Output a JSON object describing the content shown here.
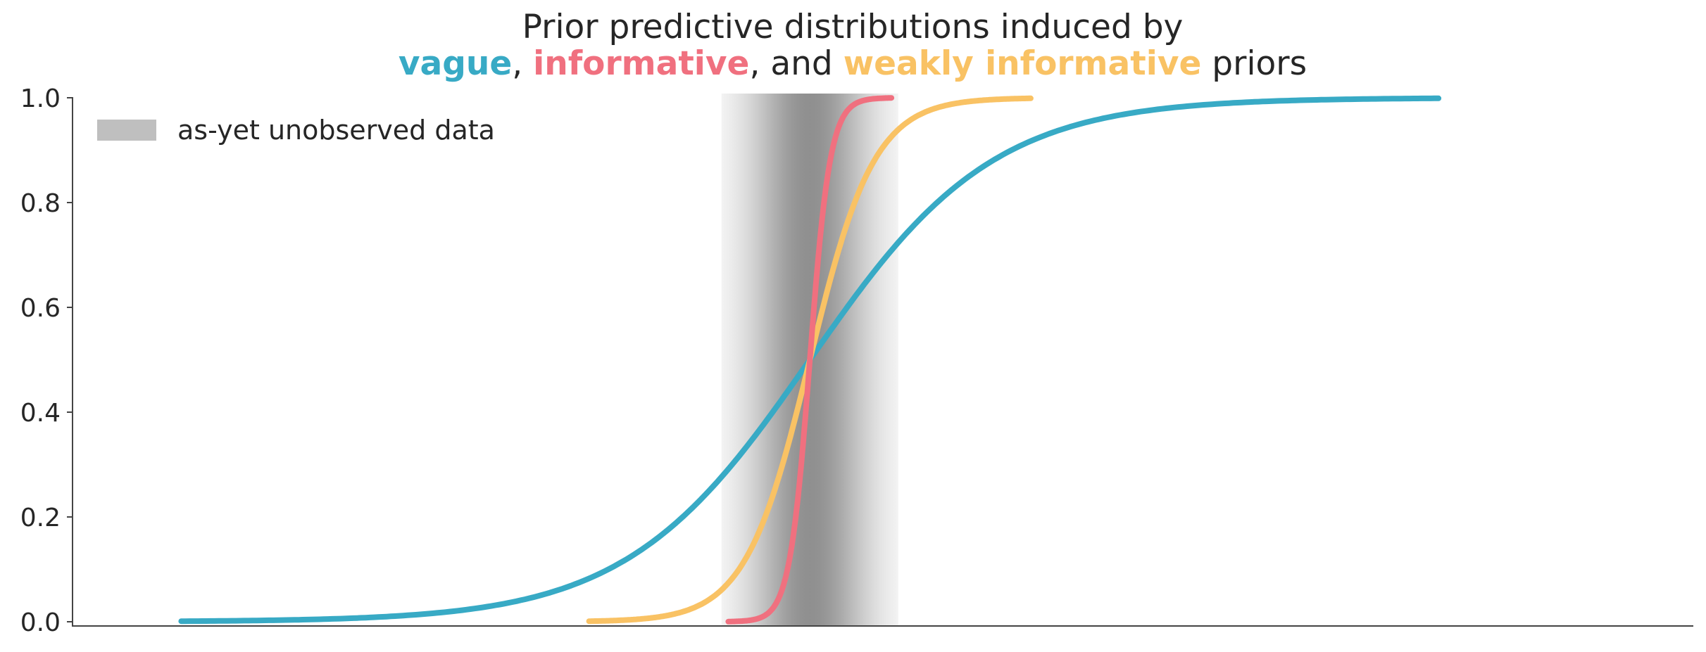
{
  "chart_data": {
    "type": "line",
    "title_line1": "Prior predictive distributions induced by",
    "title_line2": [
      {
        "text": "vague",
        "color": "#38aac5",
        "bold": true
      },
      {
        "text": ", ",
        "color": "#262626",
        "bold": false
      },
      {
        "text": "informative",
        "color": "#f0707f",
        "bold": true
      },
      {
        "text": ", and ",
        "color": "#262626",
        "bold": false
      },
      {
        "text": "weakly informative",
        "color": "#f9c264",
        "bold": true
      },
      {
        "text": " priors",
        "color": "#262626",
        "bold": false
      }
    ],
    "xlabel": "",
    "ylabel": "",
    "ylim": [
      0.0,
      1.0
    ],
    "yticks": [
      "0.0",
      "0.2",
      "0.4",
      "0.6",
      "0.8",
      "1.0"
    ],
    "x_ticks_shown": false,
    "grid": false,
    "legend": {
      "placement": "top-left",
      "entries": [
        {
          "label": "as-yet unobserved data",
          "color": "#bfbfbf"
        }
      ]
    },
    "shaded_region": {
      "label": "as-yet unobserved data",
      "x_range": [
        -2.6,
        2.6
      ],
      "color": "#808080"
    },
    "series": [
      {
        "key": "vague",
        "color": "#38aac5",
        "x_range": [
          -18.5,
          18.5
        ],
        "scale": 2.7
      },
      {
        "key": "weakly informative",
        "color": "#f9c264",
        "x_range": [
          -6.5,
          6.5
        ],
        "scale": 0.95
      },
      {
        "key": "informative",
        "color": "#f0707f",
        "x_range": [
          -2.4,
          2.4
        ],
        "scale": 0.3
      }
    ]
  }
}
